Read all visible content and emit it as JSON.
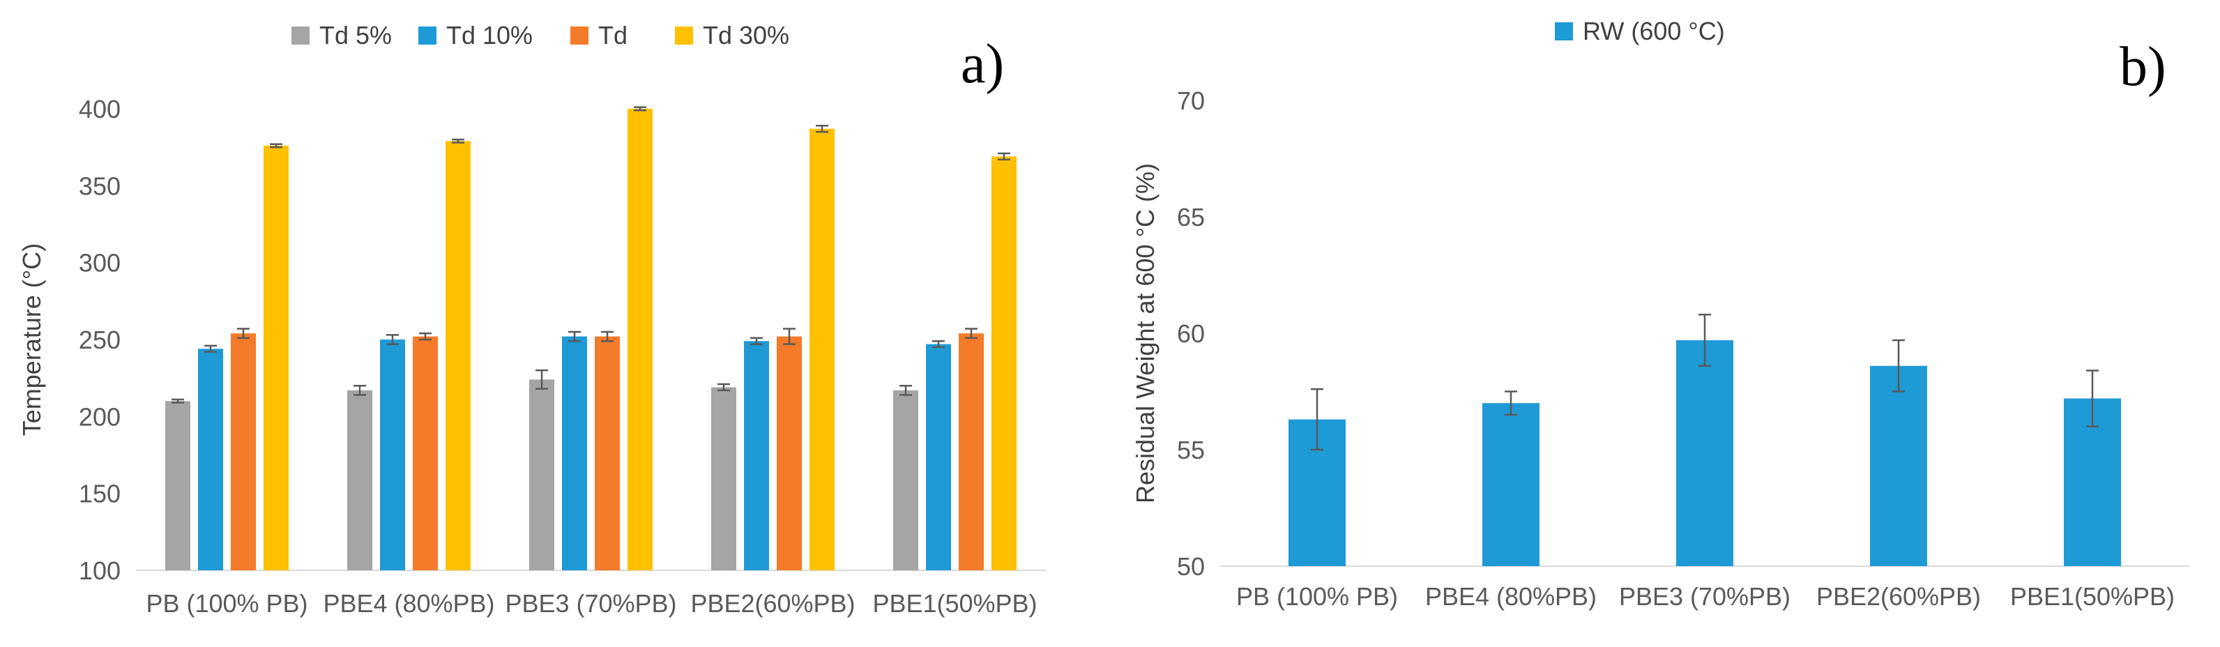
{
  "colors": {
    "td5": "#A5A5A5",
    "td10": "#1E9AD6",
    "td": "#F47B2A",
    "td30": "#FFC000",
    "rw": "#1E9AD6",
    "gridline": "#D9D9D9",
    "axis_text": "#595959",
    "error_bar": "#595959"
  },
  "chart_data": [
    {
      "panel": "a)",
      "type": "bar",
      "title": "",
      "xlabel": "",
      "ylabel": "Temperature (°C)",
      "ylim": [
        100,
        400
      ],
      "yticks": [
        100,
        150,
        200,
        250,
        300,
        350,
        400
      ],
      "grid": false,
      "legend_position": "top",
      "categories": [
        "PB (100% PB)",
        "PBE4 (80%PB)",
        "PBE3 (70%PB)",
        "PBE2(60%PB)",
        "PBE1(50%PB)"
      ],
      "series": [
        {
          "name": "Td 5%",
          "color_key": "td5",
          "values": [
            210,
            217,
            224,
            219,
            217
          ],
          "errors": [
            1,
            3,
            6,
            2,
            3
          ]
        },
        {
          "name": "Td 10%",
          "color_key": "td10",
          "values": [
            244,
            250,
            252,
            249,
            247
          ],
          "errors": [
            2,
            3,
            3,
            2,
            2
          ]
        },
        {
          "name": "Td",
          "color_key": "td",
          "values": [
            254,
            252,
            252,
            252,
            254
          ],
          "errors": [
            3,
            2,
            3,
            5,
            3
          ]
        },
        {
          "name": "Td 30%",
          "color_key": "td30",
          "values": [
            376,
            379,
            400,
            387,
            369
          ],
          "errors": [
            1,
            1,
            1,
            2,
            2
          ]
        }
      ]
    },
    {
      "panel": "b)",
      "type": "bar",
      "title": "",
      "xlabel": "",
      "ylabel": "Residual Weight at 600 °C (%)",
      "ylim": [
        50,
        70
      ],
      "yticks": [
        50,
        55,
        60,
        65,
        70
      ],
      "grid": false,
      "legend_position": "top",
      "categories": [
        "PB (100% PB)",
        "PBE4 (80%PB)",
        "PBE3 (70%PB)",
        "PBE2(60%PB)",
        "PBE1(50%PB)"
      ],
      "series": [
        {
          "name": "RW (600 °C)",
          "color_key": "rw",
          "values": [
            56.3,
            57.0,
            59.7,
            58.6,
            57.2
          ],
          "errors": [
            1.3,
            0.5,
            1.1,
            1.1,
            1.2
          ]
        }
      ]
    }
  ]
}
